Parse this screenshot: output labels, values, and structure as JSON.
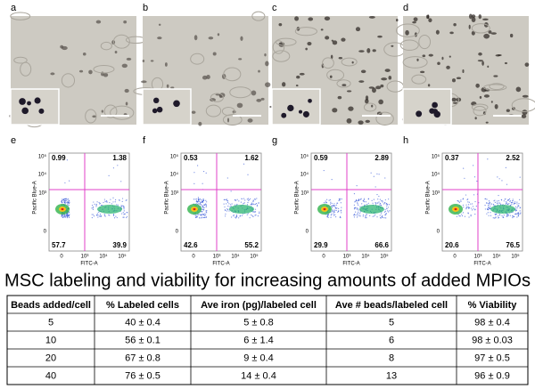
{
  "images": [
    {
      "label": "a"
    },
    {
      "label": "b"
    },
    {
      "label": "c"
    },
    {
      "label": "d"
    }
  ],
  "flow_plots": [
    {
      "label": "e",
      "upper_left": "0.99",
      "upper_right": "1.38",
      "lower_left": "57.7",
      "lower_right": "39.9"
    },
    {
      "label": "f",
      "upper_left": "0.53",
      "upper_right": "1.62",
      "lower_left": "42.6",
      "lower_right": "55.2"
    },
    {
      "label": "g",
      "upper_left": "0.59",
      "upper_right": "2.89",
      "lower_left": "29.9",
      "lower_right": "66.6"
    },
    {
      "label": "h",
      "upper_left": "0.37",
      "upper_right": "2.52",
      "lower_left": "20.6",
      "lower_right": "76.5"
    }
  ],
  "flow_axes": {
    "x_label": "FITC-A",
    "y_label": "Pacific Blue-A",
    "x_ticks": [
      "0",
      "10³",
      "10⁴",
      "10⁵"
    ],
    "y_ticks": [
      "10⁵",
      "10⁴",
      "10³",
      "0"
    ]
  },
  "table": {
    "title": "MSC labeling and viability for increasing amounts of added MPIOs",
    "header": [
      "Beads added/cell",
      "% Labeled cells",
      "Ave iron (pg)/labeled cell",
      "Ave # beads/labeled cell",
      "% Viability"
    ],
    "rows": [
      [
        "5",
        "40 ± 0.4",
        "5 ± 0.8",
        "5",
        "98 ± 0.4"
      ],
      [
        "10",
        "56 ± 0.1",
        "6 ± 1.4",
        "6",
        "98 ± 0.03"
      ],
      [
        "20",
        "67 ± 0.8",
        "9 ± 0.4",
        "8",
        "97 ± 0.5"
      ],
      [
        "40",
        "76 ± 0.5",
        "14 ± 0.4",
        "13",
        "96 ± 0.9"
      ]
    ]
  }
}
